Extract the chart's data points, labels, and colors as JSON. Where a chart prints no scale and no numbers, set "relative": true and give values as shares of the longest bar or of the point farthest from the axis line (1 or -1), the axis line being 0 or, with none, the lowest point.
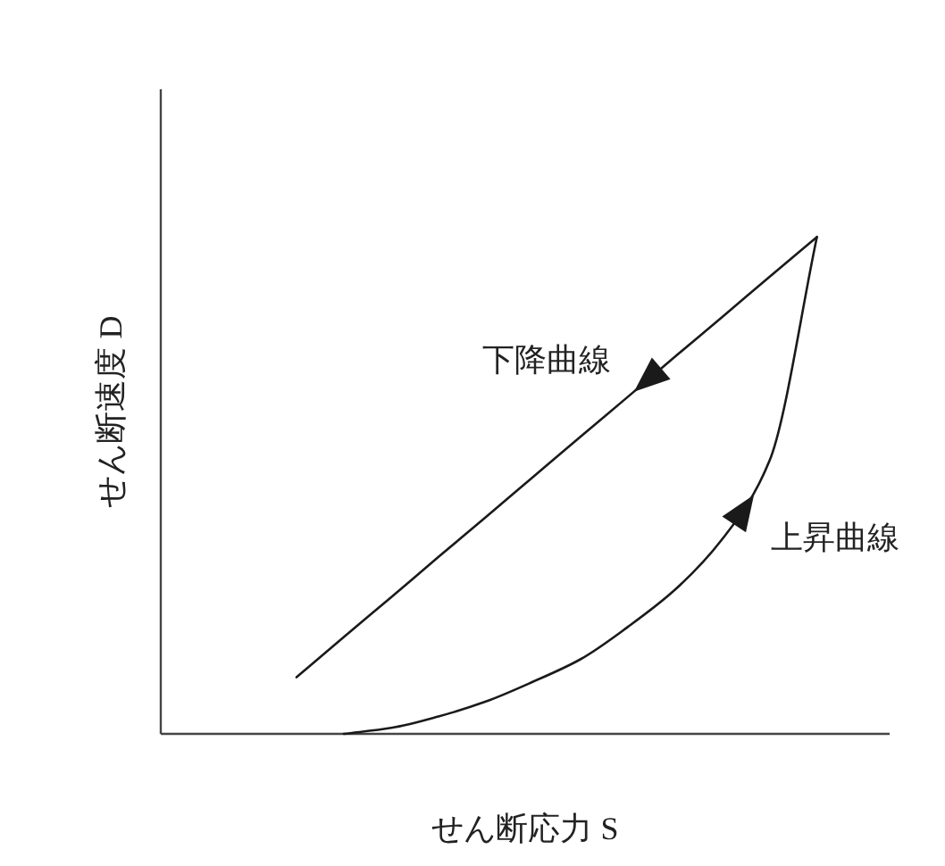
{
  "chart_data": {
    "type": "line",
    "relative": true,
    "xlabel": "せん断応力 S",
    "ylabel": "せん断速度 D",
    "marker": "none",
    "line_style": "solid",
    "grid": false,
    "categories": [
      null,
      null,
      null,
      null,
      null,
      null,
      null,
      null,
      null,
      null,
      null,
      null
    ],
    "series": [
      {
        "name": "上昇曲線",
        "color": "#1a1a1a",
        "values": [
          null,
          0,
          0.012,
          0.035,
          0.065,
          0.105,
          0.15,
          0.215,
          0.29,
          0.392,
          0.55,
          1
        ]
      },
      {
        "name": "下降曲線",
        "color": "#1a1a1a",
        "values": [
          0.114,
          0.195,
          0.275,
          0.356,
          0.436,
          0.517,
          0.598,
          0.678,
          0.759,
          0.839,
          0.92,
          1
        ]
      }
    ]
  }
}
